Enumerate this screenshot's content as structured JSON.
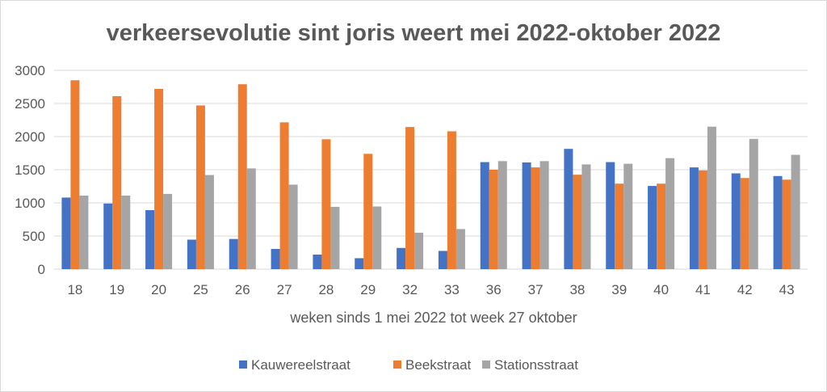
{
  "chart_data": {
    "type": "bar",
    "title": "verkeersevolutie sint joris weert mei 2022-oktober 2022",
    "xlabel": "weken sinds 1 mei 2022 tot week 27 oktober",
    "ylabel": "",
    "ylim": [
      0,
      3000
    ],
    "yticks": [
      "0",
      "500",
      "1000",
      "1500",
      "2000",
      "2500",
      "3000"
    ],
    "grid": true,
    "legend_position": "bottom",
    "categories": [
      "18",
      "19",
      "20",
      "25",
      "26",
      "27",
      "28",
      "29",
      "32",
      "33",
      "36",
      "37",
      "38",
      "39",
      "40",
      "41",
      "42",
      "43"
    ],
    "series": [
      {
        "name": "Kauwereelstraat",
        "color": "#4472C4",
        "values": [
          1080,
          990,
          890,
          445,
          455,
          305,
          220,
          165,
          320,
          275,
          1615,
          1610,
          1815,
          1615,
          1255,
          1535,
          1445,
          1405
        ]
      },
      {
        "name": "Beekstraat",
        "color": "#ED7D31",
        "values": [
          2850,
          2610,
          2720,
          2470,
          2790,
          2215,
          1960,
          1740,
          2145,
          2080,
          1500,
          1535,
          1425,
          1290,
          1290,
          1490,
          1375,
          1350
        ]
      },
      {
        "name": "Stationsstraat",
        "color": "#A5A5A5",
        "values": [
          1110,
          1110,
          1135,
          1420,
          1520,
          1275,
          940,
          945,
          550,
          605,
          1630,
          1630,
          1580,
          1590,
          1675,
          2150,
          1965,
          1725
        ]
      }
    ]
  }
}
